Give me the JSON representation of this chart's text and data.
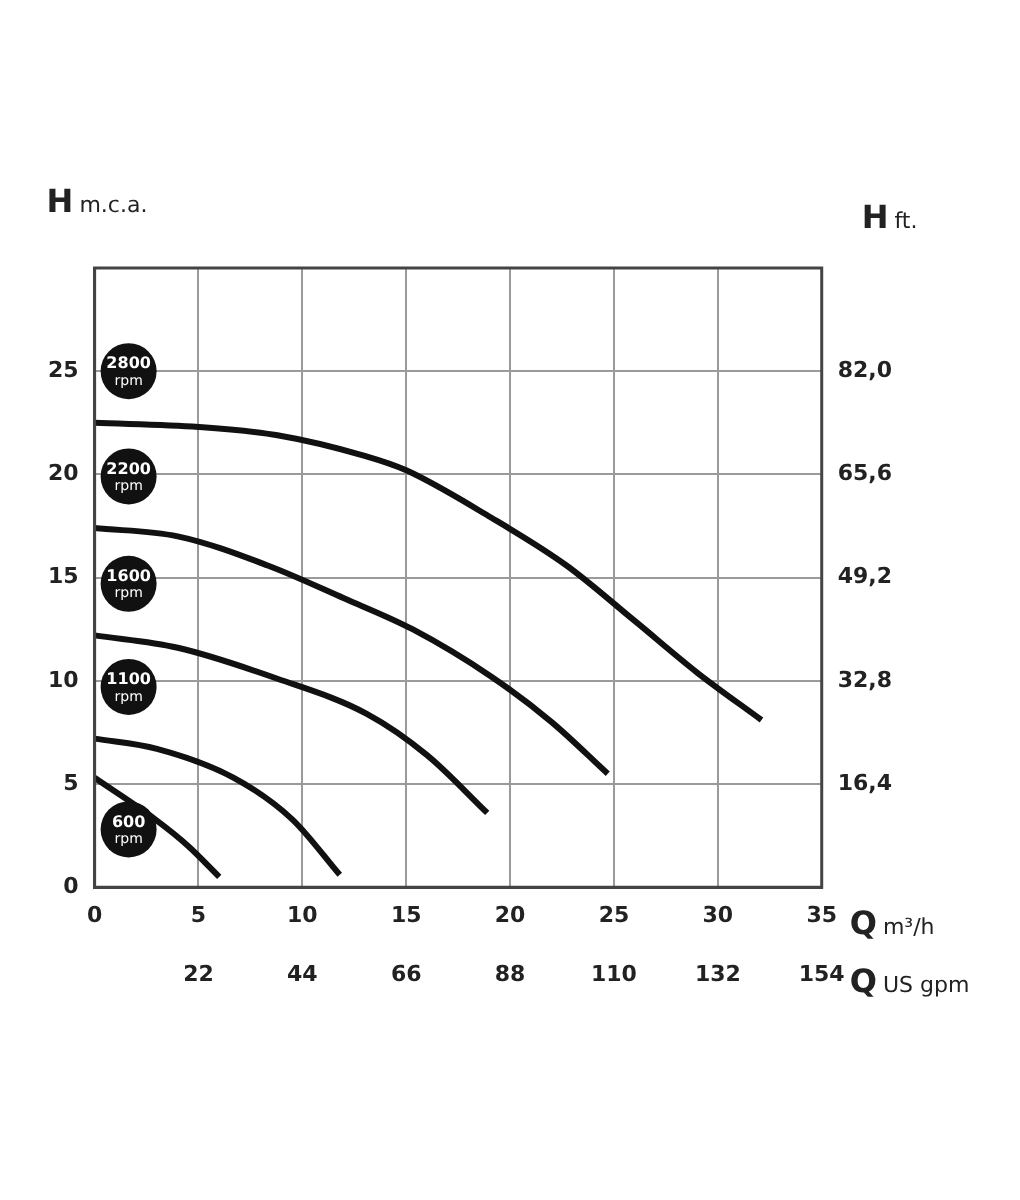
{
  "chart_data": {
    "type": "line",
    "ylabel": "H m.c.a.",
    "y2label": "H ft.",
    "xlabel": "Q m³/h",
    "x2label": "Q US gpm",
    "xlim": [
      0,
      35
    ],
    "xticks": [
      0,
      5,
      10,
      15,
      20,
      25,
      30,
      35
    ],
    "x2lim": [
      0,
      154
    ],
    "x2ticks": [
      22,
      44,
      66,
      88,
      110,
      132,
      154
    ],
    "ylim": [
      0,
      30
    ],
    "yticks": [
      0,
      5,
      10,
      15,
      20,
      25
    ],
    "y2lim": [
      0,
      98.4
    ],
    "y2ticks": [
      {
        "value": 16.4,
        "label": "16,4"
      },
      {
        "value": 32.8,
        "label": "32,8"
      },
      {
        "value": 49.2,
        "label": "49,2"
      },
      {
        "value": 65.6,
        "label": "65,6"
      },
      {
        "value": 82.0,
        "label": "82,0"
      }
    ],
    "grid": true,
    "legend": false,
    "marker": "none",
    "line_style": "solid",
    "series": [
      {
        "name": "2800 rpm",
        "color": "#111111",
        "x": [
          0,
          5,
          8.8,
          13,
          15,
          19.1,
          22.7,
          26,
          29,
          32.1
        ],
        "values": [
          22.5,
          22.3,
          21.9,
          20.9,
          20.2,
          17.9,
          15.6,
          12.9,
          10.4,
          8.1
        ]
      },
      {
        "name": "2200 rpm",
        "color": "#111111",
        "x": [
          0,
          4,
          8.3,
          12,
          15.3,
          19.1,
          22,
          24.7
        ],
        "values": [
          17.4,
          17.0,
          15.6,
          14.0,
          12.5,
          10.2,
          8.0,
          5.5
        ]
      },
      {
        "name": "1600 rpm",
        "color": "#111111",
        "x": [
          0,
          4,
          8.8,
          13.1,
          16,
          18.9
        ],
        "values": [
          12.2,
          11.6,
          10.1,
          8.4,
          6.4,
          3.6
        ]
      },
      {
        "name": "1100 rpm",
        "color": "#111111",
        "x": [
          0,
          3,
          6.7,
          9.5,
          11.8
        ],
        "values": [
          7.2,
          6.7,
          5.3,
          3.3,
          0.6
        ]
      },
      {
        "name": "600 rpm",
        "color": "#111111",
        "x": [
          0,
          2.9,
          4.5,
          6.0
        ],
        "values": [
          5.3,
          3.3,
          2.0,
          0.5
        ]
      }
    ]
  }
}
